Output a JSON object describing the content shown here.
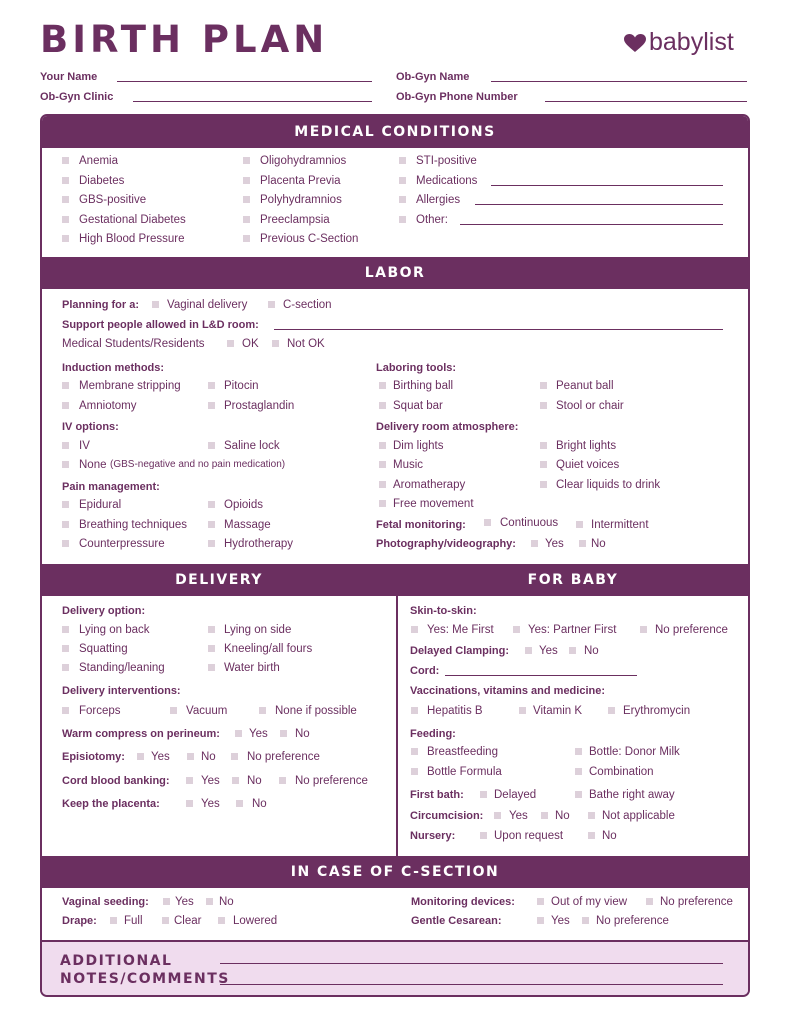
{
  "colors": {
    "primary": "#6b2f60",
    "checkbox": "#ddd0da",
    "notes_bg": "#f0dcee"
  },
  "header": {
    "title": "BIRTH PLAN",
    "logo": "babylist",
    "logo_icon": "heart-icon",
    "fields": {
      "your_name": "Your Name",
      "obgyn_name": "Ob-Gyn Name",
      "obgyn_clinic": "Ob-Gyn Clinic",
      "obgyn_phone": "Ob-Gyn Phone Number"
    }
  },
  "medical": {
    "title": "MEDICAL CONDITIONS",
    "col1": [
      "Anemia",
      "Diabetes",
      "GBS-positive",
      "Gestational Diabetes",
      "High Blood Pressure"
    ],
    "col2": [
      "Oligohydramnios",
      "Placenta Previa",
      "Polyhydramnios",
      "Preeclampsia",
      "Previous C-Section"
    ],
    "col3": [
      "STI-positive",
      "Medications",
      "Allergies",
      "Other:"
    ]
  },
  "labor": {
    "title": "LABOR",
    "planning": {
      "label": "Planning for a:",
      "options": [
        "Vaginal delivery",
        "C-section"
      ]
    },
    "support": {
      "label": "Support people allowed in L&D room:"
    },
    "students": {
      "label": "Medical Students/Residents",
      "options": [
        "OK",
        "Not OK"
      ]
    },
    "induction": {
      "label": "Induction methods:",
      "options": [
        "Membrane stripping",
        "Pitocin",
        "Amniotomy",
        "Prostaglandin"
      ]
    },
    "iv": {
      "label": "IV options:",
      "options": [
        "IV",
        "Saline lock",
        "None"
      ],
      "none_note": "(GBS-negative and no pain medication)"
    },
    "pain": {
      "label": "Pain management:",
      "options": [
        "Epidural",
        "Opioids",
        "Breathing techniques",
        "Massage",
        "Counterpressure",
        "Hydrotherapy"
      ]
    },
    "tools": {
      "label": "Laboring tools:",
      "options": [
        "Birthing ball",
        "Peanut ball",
        "Squat bar",
        "Stool or chair"
      ]
    },
    "atmosphere": {
      "label": "Delivery room atmosphere:",
      "options": [
        "Dim lights",
        "Bright lights",
        "Music",
        "Quiet voices",
        "Aromatherapy",
        "Clear liquids to drink",
        "Free movement"
      ]
    },
    "fetal": {
      "label": "Fetal monitoring:",
      "options": [
        "Continuous",
        "Intermittent"
      ]
    },
    "photo": {
      "label": "Photography/videography:",
      "options": [
        "Yes",
        "No"
      ]
    }
  },
  "delivery": {
    "title": "DELIVERY",
    "option": {
      "label": "Delivery option:",
      "options": [
        "Lying on back",
        "Lying on side",
        "Squatting",
        "Kneeling/all fours",
        "Standing/leaning",
        "Water birth"
      ]
    },
    "interventions": {
      "label": "Delivery interventions:",
      "options": [
        "Forceps",
        "Vacuum",
        "None if possible"
      ]
    },
    "compress": {
      "label": "Warm compress on perineum:",
      "options": [
        "Yes",
        "No"
      ]
    },
    "episiotomy": {
      "label": "Episiotomy:",
      "options": [
        "Yes",
        "No",
        "No preference"
      ]
    },
    "cord_blood": {
      "label": "Cord blood banking:",
      "options": [
        "Yes",
        "No",
        "No preference"
      ]
    },
    "placenta": {
      "label": "Keep the placenta:",
      "options": [
        "Yes",
        "No"
      ]
    }
  },
  "baby": {
    "title": "FOR BABY",
    "skin": {
      "label": "Skin-to-skin:",
      "options": [
        "Yes: Me First",
        "Yes: Partner First",
        "No preference"
      ]
    },
    "clamping": {
      "label": "Delayed Clamping:",
      "options": [
        "Yes",
        "No"
      ]
    },
    "cord": {
      "label": "Cord:"
    },
    "vaccines": {
      "label": "Vaccinations, vitamins and medicine:",
      "options": [
        "Hepatitis B",
        "Vitamin K",
        "Erythromycin"
      ]
    },
    "feeding": {
      "label": "Feeding:",
      "options": [
        "Breastfeeding",
        "Bottle: Donor Milk",
        "Bottle Formula",
        "Combination"
      ]
    },
    "bath": {
      "label": "First bath:",
      "options": [
        "Delayed",
        "Bathe right away"
      ]
    },
    "circumcision": {
      "label": "Circumcision:",
      "options": [
        "Yes",
        "No",
        "Not applicable"
      ]
    },
    "nursery": {
      "label": "Nursery:",
      "options": [
        "Upon request",
        "No"
      ]
    }
  },
  "csection": {
    "title": "IN CASE OF C-SECTION",
    "seeding": {
      "label": "Vaginal seeding:",
      "options": [
        "Yes",
        "No"
      ]
    },
    "drape": {
      "label": "Drape:",
      "options": [
        "Full",
        "Clear",
        "Lowered"
      ]
    },
    "monitoring": {
      "label": "Monitoring devices:",
      "options": [
        "Out of my view",
        "No preference"
      ]
    },
    "gentle": {
      "label": "Gentle Cesarean:",
      "options": [
        "Yes",
        "No preference"
      ]
    }
  },
  "notes": {
    "title_line1": "ADDITIONAL",
    "title_line2": "NOTES/COMMENTS"
  }
}
